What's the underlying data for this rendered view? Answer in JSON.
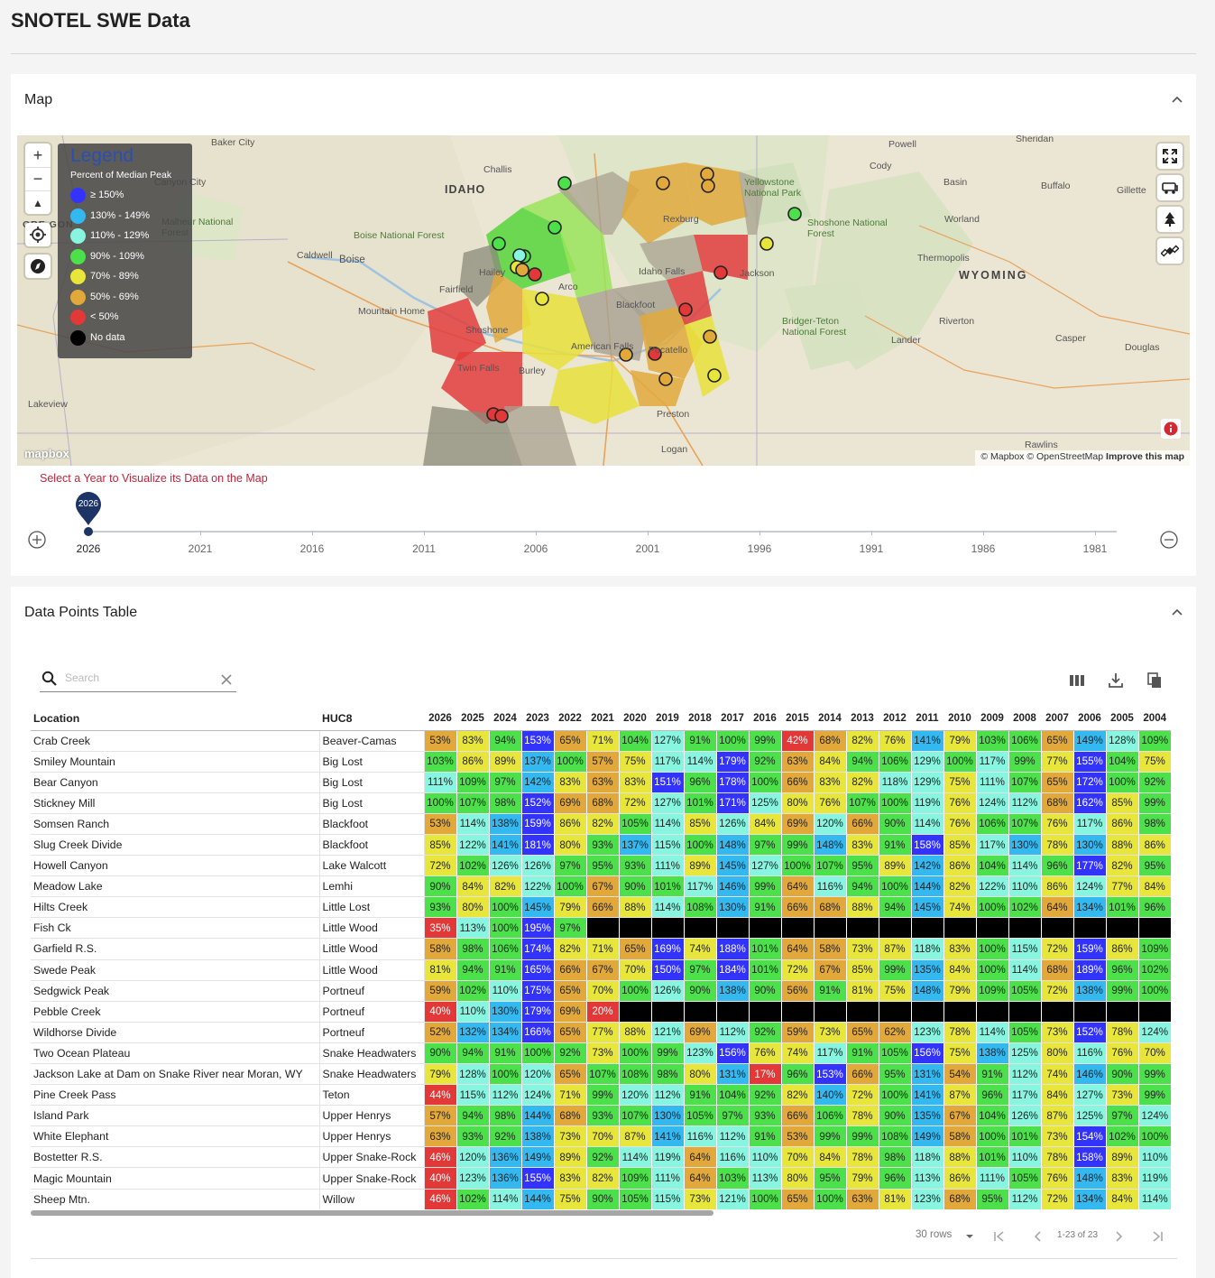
{
  "page_title": "SNOTEL SWE Data",
  "map_section": {
    "title": "Map",
    "legend": {
      "title": "Legend",
      "subtitle": "Percent of Median Peak",
      "items": [
        {
          "label": "≥ 150%",
          "color": "#3333ff"
        },
        {
          "label": "130% - 149%",
          "color": "#33b8f0"
        },
        {
          "label": "110% - 129%",
          "color": "#88f5e0"
        },
        {
          "label": "90% - 109%",
          "color": "#4ce04a"
        },
        {
          "label": "70% - 89%",
          "color": "#e8e63a"
        },
        {
          "label": "50% - 69%",
          "color": "#e2a83a"
        },
        {
          "label": "< 50%",
          "color": "#e23838"
        },
        {
          "label": "No data",
          "color": "#000000"
        }
      ]
    },
    "place_labels": [
      "Baker City",
      "Challis",
      "IDAHO",
      "Canyon City",
      "Malheur National Forest",
      "Boise National Forest",
      "Caldwell",
      "Boise",
      "Mountain Home",
      "Hailey",
      "Fairfield",
      "Arco",
      "Blackfoot",
      "American Falls",
      "Twin Falls",
      "Burley",
      "Shoshone",
      "Pocatello",
      "Preston",
      "Logan",
      "Lakeview",
      "Rexburg",
      "Idaho Falls",
      "Jackson",
      "Yellowstone National Park",
      "Cody",
      "Powell",
      "Sheridan",
      "Basin",
      "Buffalo",
      "Gillette",
      "Worland",
      "Shoshone National Forest",
      "Thermopolis",
      "WYOMING",
      "Bridger-Teton National Forest",
      "Riverton",
      "Lander",
      "Casper",
      "Douglas",
      "Rawlins",
      "ORE GON"
    ],
    "attribution": "© Mapbox © OpenStreetMap",
    "attribution_link": "Improve this map",
    "mapbox_logo": "mapbox",
    "slider": {
      "label": "Select a Year to Visualize its Data on the Map",
      "selected_year": "2026",
      "tick_labels": [
        "2026",
        "2021",
        "2016",
        "2011",
        "2006",
        "2001",
        "1996",
        "1991",
        "1986",
        "1981"
      ]
    }
  },
  "table_section": {
    "title": "Data Points Table",
    "search_placeholder": "Search",
    "columns": [
      "Location",
      "HUC8"
    ],
    "years": [
      "2026",
      "2025",
      "2024",
      "2023",
      "2022",
      "2021",
      "2020",
      "2019",
      "2018",
      "2017",
      "2016",
      "2015",
      "2014",
      "2013",
      "2012",
      "2011",
      "2010",
      "2009",
      "2008",
      "2007",
      "2006",
      "2005",
      "2004"
    ],
    "rows": [
      {
        "location": "Crab Creek",
        "huc": "Beaver-Camas",
        "values": [
          "53%",
          "83%",
          "94%",
          "153%",
          "65%",
          "71%",
          "104%",
          "127%",
          "91%",
          "100%",
          "99%",
          "42%",
          "68%",
          "82%",
          "76%",
          "141%",
          "79%",
          "103%",
          "106%",
          "65%",
          "149%",
          "128%",
          "109%"
        ]
      },
      {
        "location": "Smiley Mountain",
        "huc": "Big Lost",
        "values": [
          "103%",
          "86%",
          "89%",
          "137%",
          "100%",
          "57%",
          "75%",
          "117%",
          "114%",
          "179%",
          "92%",
          "63%",
          "84%",
          "94%",
          "106%",
          "129%",
          "100%",
          "117%",
          "99%",
          "77%",
          "155%",
          "104%",
          "75%"
        ]
      },
      {
        "location": "Bear Canyon",
        "huc": "Big Lost",
        "values": [
          "111%",
          "109%",
          "97%",
          "142%",
          "83%",
          "63%",
          "83%",
          "151%",
          "96%",
          "178%",
          "100%",
          "66%",
          "83%",
          "82%",
          "118%",
          "129%",
          "75%",
          "111%",
          "107%",
          "65%",
          "172%",
          "100%",
          "92%"
        ]
      },
      {
        "location": "Stickney Mill",
        "huc": "Big Lost",
        "values": [
          "100%",
          "107%",
          "98%",
          "152%",
          "69%",
          "68%",
          "72%",
          "127%",
          "101%",
          "171%",
          "125%",
          "80%",
          "76%",
          "107%",
          "100%",
          "119%",
          "76%",
          "124%",
          "112%",
          "68%",
          "162%",
          "85%",
          "99%"
        ]
      },
      {
        "location": "Somsen Ranch",
        "huc": "Blackfoot",
        "values": [
          "53%",
          "114%",
          "138%",
          "159%",
          "86%",
          "82%",
          "105%",
          "114%",
          "85%",
          "126%",
          "84%",
          "69%",
          "120%",
          "66%",
          "90%",
          "114%",
          "76%",
          "106%",
          "107%",
          "76%",
          "117%",
          "86%",
          "98%"
        ]
      },
      {
        "location": "Slug Creek Divide",
        "huc": "Blackfoot",
        "values": [
          "85%",
          "122%",
          "141%",
          "181%",
          "80%",
          "93%",
          "137%",
          "115%",
          "100%",
          "148%",
          "97%",
          "99%",
          "148%",
          "83%",
          "91%",
          "158%",
          "85%",
          "117%",
          "130%",
          "78%",
          "130%",
          "88%",
          "86%"
        ]
      },
      {
        "location": "Howell Canyon",
        "huc": "Lake Walcott",
        "values": [
          "72%",
          "102%",
          "126%",
          "126%",
          "97%",
          "95%",
          "93%",
          "111%",
          "89%",
          "145%",
          "127%",
          "100%",
          "107%",
          "95%",
          "89%",
          "142%",
          "86%",
          "104%",
          "114%",
          "96%",
          "177%",
          "82%",
          "95%"
        ]
      },
      {
        "location": "Meadow Lake",
        "huc": "Lemhi",
        "values": [
          "90%",
          "84%",
          "82%",
          "122%",
          "100%",
          "67%",
          "90%",
          "101%",
          "117%",
          "146%",
          "99%",
          "64%",
          "116%",
          "94%",
          "100%",
          "144%",
          "82%",
          "122%",
          "110%",
          "86%",
          "124%",
          "77%",
          "84%"
        ]
      },
      {
        "location": "Hilts Creek",
        "huc": "Little Lost",
        "values": [
          "93%",
          "80%",
          "100%",
          "145%",
          "79%",
          "66%",
          "88%",
          "114%",
          "108%",
          "130%",
          "91%",
          "66%",
          "68%",
          "88%",
          "94%",
          "145%",
          "74%",
          "100%",
          "102%",
          "64%",
          "134%",
          "101%",
          "96%"
        ]
      },
      {
        "location": "Fish Ck",
        "huc": "Little Wood",
        "values": [
          "35%",
          "113%",
          "100%",
          "195%",
          "97%",
          "",
          "",
          "",
          "",
          "",
          "",
          "",
          "",
          "",
          "",
          "",
          "",
          "",
          "",
          "",
          "",
          "",
          ""
        ]
      },
      {
        "location": "Garfield R.S.",
        "huc": "Little Wood",
        "values": [
          "58%",
          "98%",
          "106%",
          "174%",
          "82%",
          "71%",
          "65%",
          "169%",
          "74%",
          "188%",
          "101%",
          "64%",
          "58%",
          "73%",
          "87%",
          "118%",
          "83%",
          "100%",
          "115%",
          "72%",
          "159%",
          "86%",
          "109%"
        ]
      },
      {
        "location": "Swede Peak",
        "huc": "Little Wood",
        "values": [
          "81%",
          "94%",
          "91%",
          "165%",
          "66%",
          "67%",
          "70%",
          "150%",
          "97%",
          "184%",
          "101%",
          "72%",
          "67%",
          "85%",
          "99%",
          "135%",
          "84%",
          "100%",
          "114%",
          "68%",
          "189%",
          "96%",
          "102%"
        ]
      },
      {
        "location": "Sedgwick Peak",
        "huc": "Portneuf",
        "values": [
          "59%",
          "102%",
          "110%",
          "175%",
          "65%",
          "70%",
          "100%",
          "126%",
          "90%",
          "138%",
          "90%",
          "56%",
          "91%",
          "81%",
          "75%",
          "148%",
          "79%",
          "109%",
          "105%",
          "72%",
          "138%",
          "99%",
          "100%"
        ]
      },
      {
        "location": "Pebble Creek",
        "huc": "Portneuf",
        "values": [
          "40%",
          "110%",
          "130%",
          "179%",
          "69%",
          "20%",
          "",
          "",
          "",
          "",
          "",
          "",
          "",
          "",
          "",
          "",
          "",
          "",
          "",
          "",
          "",
          "",
          ""
        ]
      },
      {
        "location": "Wildhorse Divide",
        "huc": "Portneuf",
        "values": [
          "52%",
          "132%",
          "134%",
          "166%",
          "65%",
          "77%",
          "88%",
          "121%",
          "69%",
          "112%",
          "92%",
          "59%",
          "73%",
          "65%",
          "62%",
          "123%",
          "78%",
          "114%",
          "105%",
          "73%",
          "152%",
          "78%",
          "124%"
        ]
      },
      {
        "location": "Two Ocean Plateau",
        "huc": "Snake Headwaters",
        "values": [
          "90%",
          "94%",
          "91%",
          "100%",
          "92%",
          "73%",
          "100%",
          "99%",
          "123%",
          "156%",
          "76%",
          "74%",
          "117%",
          "91%",
          "105%",
          "156%",
          "75%",
          "138%",
          "125%",
          "80%",
          "116%",
          "76%",
          "70%"
        ]
      },
      {
        "location": "Jackson Lake at Dam on Snake River near Moran, WY",
        "huc": "Snake Headwaters",
        "values": [
          "79%",
          "128%",
          "100%",
          "120%",
          "65%",
          "107%",
          "108%",
          "98%",
          "80%",
          "131%",
          "17%",
          "96%",
          "153%",
          "66%",
          "95%",
          "131%",
          "54%",
          "91%",
          "112%",
          "74%",
          "146%",
          "90%",
          "99%"
        ]
      },
      {
        "location": "Pine Creek Pass",
        "huc": "Teton",
        "values": [
          "44%",
          "115%",
          "112%",
          "124%",
          "71%",
          "99%",
          "120%",
          "112%",
          "91%",
          "104%",
          "92%",
          "82%",
          "140%",
          "72%",
          "100%",
          "141%",
          "87%",
          "96%",
          "117%",
          "84%",
          "127%",
          "73%",
          "99%"
        ]
      },
      {
        "location": "Island Park",
        "huc": "Upper Henrys",
        "values": [
          "57%",
          "94%",
          "98%",
          "144%",
          "68%",
          "93%",
          "107%",
          "130%",
          "105%",
          "97%",
          "93%",
          "66%",
          "106%",
          "78%",
          "90%",
          "135%",
          "67%",
          "104%",
          "126%",
          "87%",
          "125%",
          "97%",
          "124%"
        ]
      },
      {
        "location": "White Elephant",
        "huc": "Upper Henrys",
        "values": [
          "63%",
          "93%",
          "92%",
          "138%",
          "73%",
          "70%",
          "87%",
          "141%",
          "116%",
          "112%",
          "91%",
          "53%",
          "99%",
          "99%",
          "108%",
          "149%",
          "58%",
          "100%",
          "101%",
          "73%",
          "154%",
          "102%",
          "100%"
        ]
      },
      {
        "location": "Bostetter R.S.",
        "huc": "Upper Snake-Rock",
        "values": [
          "46%",
          "120%",
          "136%",
          "149%",
          "89%",
          "92%",
          "114%",
          "119%",
          "64%",
          "116%",
          "110%",
          "70%",
          "84%",
          "78%",
          "98%",
          "118%",
          "88%",
          "101%",
          "110%",
          "78%",
          "158%",
          "89%",
          "110%"
        ]
      },
      {
        "location": "Magic Mountain",
        "huc": "Upper Snake-Rock",
        "values": [
          "40%",
          "123%",
          "136%",
          "155%",
          "83%",
          "82%",
          "109%",
          "111%",
          "64%",
          "103%",
          "113%",
          "80%",
          "95%",
          "79%",
          "96%",
          "113%",
          "86%",
          "111%",
          "105%",
          "76%",
          "148%",
          "83%",
          "119%"
        ]
      },
      {
        "location": "Sheep Mtn.",
        "huc": "Willow",
        "values": [
          "46%",
          "102%",
          "114%",
          "144%",
          "75%",
          "90%",
          "105%",
          "115%",
          "73%",
          "121%",
          "100%",
          "65%",
          "100%",
          "63%",
          "81%",
          "123%",
          "68%",
          "95%",
          "112%",
          "72%",
          "134%",
          "84%",
          "114%"
        ]
      }
    ],
    "pagination": {
      "rows_per_page": "30 rows",
      "range": "1-23 of 23"
    }
  },
  "icons": {
    "zoom_in": "plus-icon",
    "zoom_out": "minus-icon",
    "compass": "compass-icon",
    "geolocate": "geolocate-icon",
    "fullscreen": "fullscreen-icon",
    "vehicle": "vehicle-icon",
    "tree": "tree-icon",
    "satellite": "satellite-icon",
    "info": "info-icon",
    "search": "search-icon",
    "clear": "close-icon",
    "columns": "columns-icon",
    "download": "download-icon",
    "copy": "copy-icon"
  }
}
